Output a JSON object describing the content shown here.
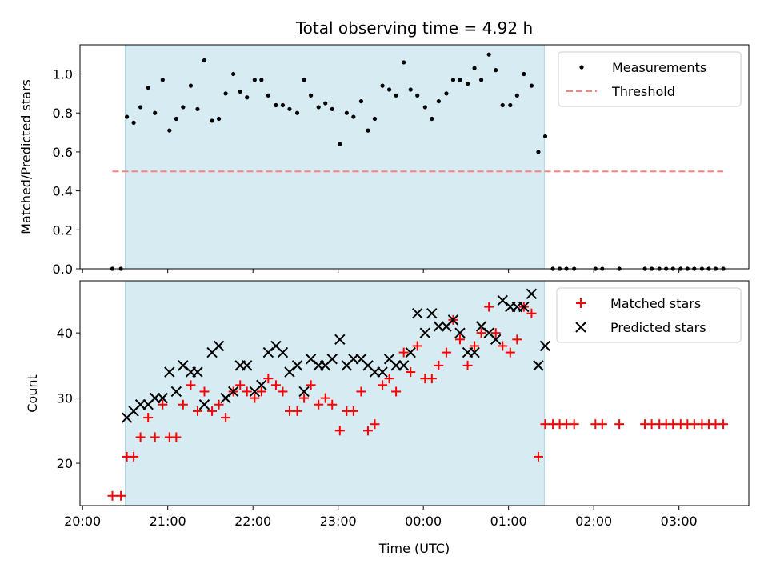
{
  "chart_data": [
    {
      "type": "scatter",
      "title": "Total observing time = 4.92 h",
      "ylabel": "Matched/Predicted stars",
      "ylim": [
        0,
        1.15
      ],
      "xlim": [
        -0.03,
        7.82
      ],
      "yticks": [
        0.0,
        0.2,
        0.4,
        0.6,
        0.8,
        1.0
      ],
      "tick_labels_y": [
        "0.0",
        "0.2",
        "0.4",
        "0.6",
        "0.8",
        "1.0"
      ],
      "shaded_region": {
        "x_start": 0.5,
        "x_end": 5.42,
        "color": "#add8e6"
      },
      "legend": {
        "placement": "top-right",
        "entries": [
          "Measurements",
          "Threshold"
        ]
      },
      "series": [
        {
          "name": "Measurements",
          "marker": "dot",
          "color": "#000000",
          "x": [
            0.35,
            0.45,
            0.52,
            0.6,
            0.68,
            0.77,
            0.85,
            0.94,
            1.02,
            1.1,
            1.18,
            1.27,
            1.35,
            1.43,
            1.52,
            1.6,
            1.68,
            1.77,
            1.85,
            1.93,
            2.02,
            2.1,
            2.18,
            2.27,
            2.35,
            2.43,
            2.52,
            2.6,
            2.68,
            2.77,
            2.85,
            2.93,
            3.02,
            3.1,
            3.18,
            3.27,
            3.35,
            3.43,
            3.52,
            3.6,
            3.68,
            3.77,
            3.85,
            3.93,
            4.02,
            4.1,
            4.18,
            4.27,
            4.35,
            4.43,
            4.52,
            4.6,
            4.68,
            4.77,
            4.85,
            4.93,
            5.02,
            5.1,
            5.18,
            5.27,
            5.35,
            5.43,
            5.52,
            5.6,
            5.68,
            5.77,
            6.02,
            6.1,
            6.3,
            6.6,
            6.68,
            6.77,
            6.85,
            6.93,
            7.02,
            7.1,
            7.18,
            7.27,
            7.35,
            7.43,
            7.52
          ],
          "y": [
            0.0,
            0.0,
            0.78,
            0.75,
            0.83,
            0.93,
            0.8,
            0.97,
            0.71,
            0.77,
            0.83,
            0.94,
            0.82,
            1.07,
            0.76,
            0.77,
            0.9,
            1.0,
            0.91,
            0.88,
            0.97,
            0.97,
            0.89,
            0.84,
            0.84,
            0.82,
            0.8,
            0.97,
            0.89,
            0.83,
            0.85,
            0.82,
            0.64,
            0.8,
            0.78,
            0.86,
            0.71,
            0.77,
            0.94,
            0.92,
            0.89,
            1.06,
            0.92,
            0.89,
            0.83,
            0.77,
            0.86,
            0.9,
            0.97,
            0.97,
            0.95,
            1.03,
            0.97,
            1.1,
            1.02,
            0.84,
            0.84,
            0.89,
            1.0,
            0.94,
            0.6,
            0.68,
            0.0,
            0.0,
            0.0,
            0.0,
            0.0,
            0.0,
            0.0,
            0.0,
            0.0,
            0.0,
            0.0,
            0.0,
            0.0,
            0.0,
            0.0,
            0.0,
            0.0,
            0.0,
            0.0
          ]
        },
        {
          "name": "Threshold",
          "marker": "dashed-line",
          "color": "#ff7f7f",
          "x": [
            0.35,
            7.52
          ],
          "y": [
            0.5,
            0.5
          ]
        }
      ]
    },
    {
      "type": "scatter",
      "ylabel": "Count",
      "xlabel": "Time (UTC)",
      "ylim": [
        13.5,
        48
      ],
      "xlim": [
        -0.03,
        7.82
      ],
      "yticks": [
        20,
        30,
        40
      ],
      "tick_labels_y": [
        "20",
        "30",
        "40"
      ],
      "xticks": [
        0,
        1,
        2,
        3,
        4,
        5,
        6,
        7
      ],
      "tick_labels_x": [
        "20:00",
        "21:00",
        "22:00",
        "23:00",
        "00:00",
        "01:00",
        "02:00",
        "03:00"
      ],
      "shaded_region": {
        "x_start": 0.5,
        "x_end": 5.42,
        "color": "#add8e6"
      },
      "legend": {
        "placement": "top-right",
        "entries": [
          "Matched stars",
          "Predicted stars"
        ]
      },
      "series": [
        {
          "name": "Matched stars",
          "marker": "plus",
          "color": "#ff0000",
          "x": [
            0.35,
            0.45,
            0.52,
            0.6,
            0.68,
            0.77,
            0.85,
            0.94,
            1.02,
            1.1,
            1.18,
            1.27,
            1.35,
            1.43,
            1.52,
            1.6,
            1.68,
            1.77,
            1.85,
            1.93,
            2.02,
            2.1,
            2.18,
            2.27,
            2.35,
            2.43,
            2.52,
            2.6,
            2.68,
            2.77,
            2.85,
            2.93,
            3.02,
            3.1,
            3.18,
            3.27,
            3.35,
            3.43,
            3.52,
            3.6,
            3.68,
            3.77,
            3.85,
            3.93,
            4.02,
            4.1,
            4.18,
            4.27,
            4.35,
            4.43,
            4.52,
            4.6,
            4.68,
            4.77,
            4.85,
            4.93,
            5.02,
            5.1,
            5.18,
            5.27,
            5.35,
            5.43,
            5.52,
            5.6,
            5.68,
            5.77,
            6.02,
            6.1,
            6.3,
            6.6,
            6.68,
            6.77,
            6.85,
            6.93,
            7.02,
            7.1,
            7.18,
            7.27,
            7.35,
            7.43,
            7.52
          ],
          "y": [
            15,
            15,
            21,
            21,
            24,
            27,
            24,
            29,
            24,
            24,
            29,
            32,
            28,
            31,
            28,
            29,
            27,
            31,
            32,
            31,
            30,
            31,
            33,
            32,
            31,
            28,
            28,
            30,
            32,
            29,
            30,
            29,
            25,
            28,
            28,
            31,
            25,
            26,
            32,
            33,
            31,
            37,
            34,
            38,
            33,
            33,
            35,
            37,
            42,
            39,
            35,
            38,
            40,
            44,
            40,
            38,
            37,
            39,
            44,
            43,
            21,
            26,
            26,
            26,
            26,
            26,
            26,
            26,
            26,
            26,
            26,
            26,
            26,
            26,
            26,
            26,
            26,
            26,
            26,
            26,
            26
          ]
        },
        {
          "name": "Predicted stars",
          "marker": "x",
          "color": "#000000",
          "x": [
            0.52,
            0.6,
            0.68,
            0.77,
            0.85,
            0.94,
            1.02,
            1.1,
            1.18,
            1.27,
            1.35,
            1.43,
            1.52,
            1.6,
            1.68,
            1.77,
            1.85,
            1.93,
            2.02,
            2.1,
            2.18,
            2.27,
            2.35,
            2.43,
            2.52,
            2.6,
            2.68,
            2.77,
            2.85,
            2.93,
            3.02,
            3.1,
            3.18,
            3.27,
            3.35,
            3.43,
            3.52,
            3.6,
            3.68,
            3.77,
            3.85,
            3.93,
            4.02,
            4.1,
            4.18,
            4.27,
            4.35,
            4.43,
            4.52,
            4.6,
            4.68,
            4.77,
            4.85,
            4.93,
            5.02,
            5.1,
            5.18,
            5.27,
            5.35,
            5.43
          ],
          "y": [
            27,
            28,
            29,
            29,
            30,
            30,
            34,
            31,
            35,
            34,
            34,
            29,
            37,
            38,
            30,
            31,
            35,
            35,
            31,
            32,
            37,
            38,
            37,
            34,
            35,
            31,
            36,
            35,
            35,
            36,
            39,
            35,
            36,
            36,
            35,
            34,
            34,
            36,
            35,
            35,
            37,
            43,
            40,
            43,
            41,
            41,
            42,
            40,
            37,
            37,
            41,
            40,
            39,
            45,
            44,
            44,
            44,
            46,
            35,
            38
          ]
        }
      ]
    }
  ]
}
